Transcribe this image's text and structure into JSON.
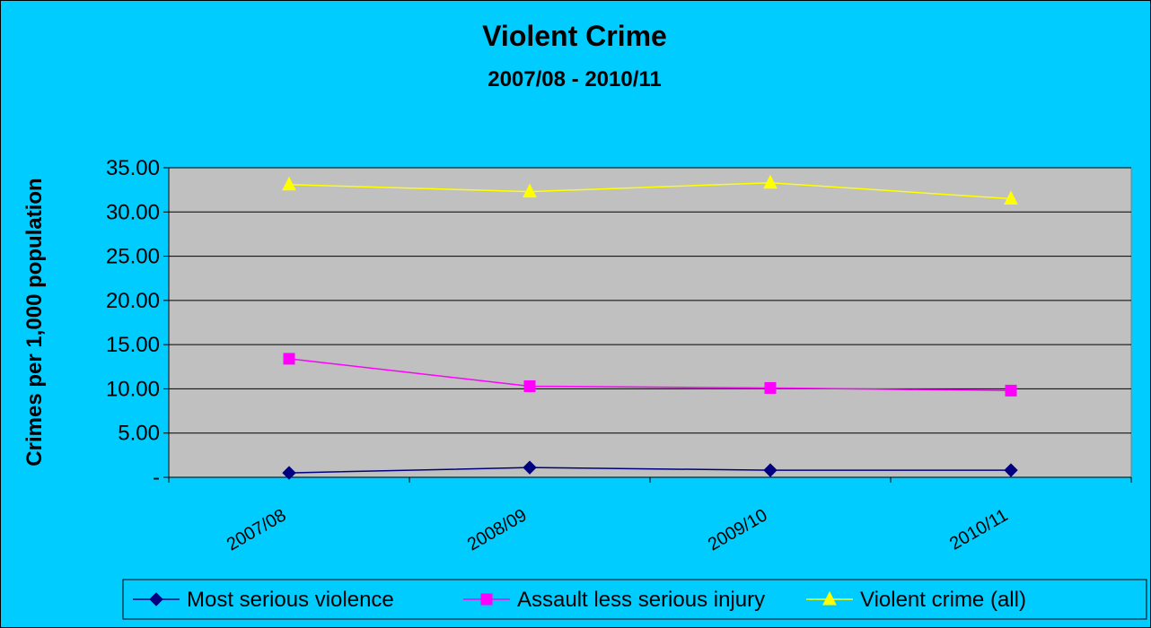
{
  "chart_data": {
    "type": "line",
    "title": "Violent Crime",
    "subtitle": "2007/08 - 2010/11",
    "ylabel": "Crimes per 1,000 population",
    "xlabel": "",
    "categories": [
      "2007/08",
      "2008/09",
      "2009/10",
      "2010/11"
    ],
    "ylim": [
      0,
      35
    ],
    "ytick_values": [
      0,
      5,
      10,
      15,
      20,
      25,
      30,
      35
    ],
    "ytick_labels": [
      "-",
      "5.00",
      "10.00",
      "15.00",
      "20.00",
      "25.00",
      "30.00",
      "35.00"
    ],
    "grid": true,
    "legend_position": "bottom",
    "plot_background": "#c0c0c0",
    "background": "#00ccff",
    "series": [
      {
        "name": "Most serious violence",
        "values": [
          0.5,
          1.1,
          0.8,
          0.8
        ],
        "color": "#000080",
        "marker": "diamond"
      },
      {
        "name": "Assault less serious injury",
        "values": [
          13.4,
          10.3,
          10.1,
          9.8
        ],
        "color": "#ff00ff",
        "marker": "square"
      },
      {
        "name": "Violent crime (all)",
        "values": [
          33.1,
          32.3,
          33.3,
          31.5
        ],
        "color": "#ffff00",
        "marker": "triangle"
      }
    ]
  }
}
